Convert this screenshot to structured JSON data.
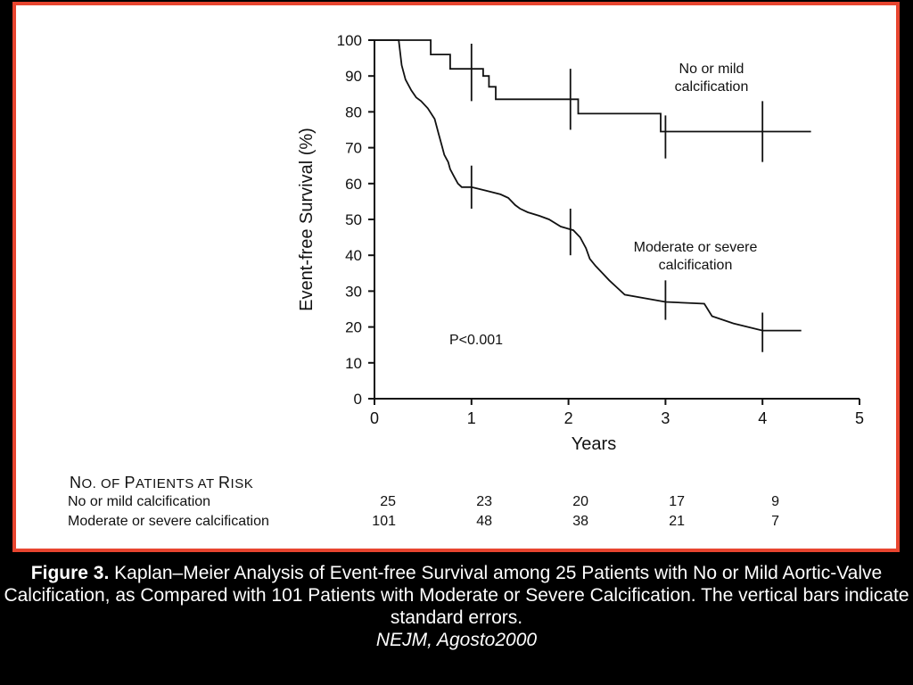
{
  "chart_data": {
    "type": "line",
    "ylabel": "Event-free Survival (%)",
    "xlabel": "Years",
    "xlim": [
      0,
      5
    ],
    "ylim": [
      0,
      100
    ],
    "xticks": [
      "0",
      "1",
      "2",
      "3",
      "4",
      "5"
    ],
    "yticks": [
      "0",
      "10",
      "20",
      "30",
      "40",
      "50",
      "60",
      "70",
      "80",
      "90",
      "100"
    ],
    "annotation": "P<0.001",
    "grid": false,
    "series": [
      {
        "name": "No or mild calcification",
        "label_line1": "No or mild",
        "label_line2": "calcification",
        "x": [
          0,
          0.58,
          0.58,
          0.78,
          0.78,
          1.12,
          1.12,
          1.18,
          1.18,
          1.25,
          1.25,
          2.1,
          2.1,
          2.95,
          2.95,
          4.5
        ],
        "y": [
          100,
          100,
          96,
          96,
          92,
          92,
          90,
          90,
          87,
          87,
          83.5,
          83.5,
          79.5,
          79.5,
          74.5,
          74.5
        ],
        "error_bars": [
          {
            "x": 1.0,
            "y": 92,
            "lo": 83,
            "hi": 99
          },
          {
            "x": 2.02,
            "y": 83.5,
            "lo": 75,
            "hi": 92
          },
          {
            "x": 3.0,
            "y": 74.5,
            "lo": 67,
            "hi": 79
          },
          {
            "x": 4.0,
            "y": 74.5,
            "lo": 66,
            "hi": 83
          }
        ]
      },
      {
        "name": "Moderate or severe calcification",
        "label_line1": "Moderate or severe",
        "label_line2": "calcification",
        "x": [
          0,
          0.25,
          0.28,
          0.32,
          0.38,
          0.43,
          0.48,
          0.55,
          0.62,
          0.66,
          0.7,
          0.72,
          0.74,
          0.76,
          0.78,
          0.82,
          0.86,
          0.9,
          0.95,
          1.0,
          1.15,
          1.3,
          1.38,
          1.45,
          1.5,
          1.58,
          1.7,
          1.8,
          1.92,
          2.05,
          2.12,
          2.18,
          2.22,
          2.28,
          2.35,
          2.42,
          2.5,
          2.58,
          3.0,
          3.4,
          3.48,
          3.7,
          4.0,
          4.4
        ],
        "y": [
          100,
          100,
          93,
          89,
          86,
          84,
          83,
          81,
          78,
          74,
          70,
          68,
          67,
          66,
          64,
          62,
          60,
          59,
          59,
          59,
          58,
          57,
          56,
          54,
          53,
          52,
          51,
          50,
          48,
          47,
          45,
          42,
          39,
          37,
          35,
          33,
          31,
          29,
          27,
          26.5,
          23,
          21,
          19,
          19
        ],
        "error_bars": [
          {
            "x": 1.0,
            "y": 59,
            "lo": 53,
            "hi": 65
          },
          {
            "x": 2.02,
            "y": 47,
            "lo": 40,
            "hi": 53
          },
          {
            "x": 3.0,
            "y": 27,
            "lo": 22,
            "hi": 33
          },
          {
            "x": 4.0,
            "y": 19,
            "lo": 13,
            "hi": 24
          }
        ]
      }
    ]
  },
  "risk_table": {
    "title_first": "N",
    "title_rest": "O. OF ",
    "title_p": "P",
    "title_atients": "ATIENTS AT ",
    "title_r": "R",
    "title_isk": "ISK",
    "rows": [
      {
        "label": "No or mild calcification",
        "values": [
          "25",
          "23",
          "20",
          "17",
          "9"
        ]
      },
      {
        "label": "Moderate or severe calcification",
        "values": [
          "101",
          "48",
          "38",
          "21",
          "7"
        ]
      }
    ]
  },
  "caption": {
    "figure_label": "Figure 3.",
    "text": " Kaplan–Meier Analysis of Event-free Survival among 25 Patients with No or Mild Aortic-Valve Calcification, as Compared with 101 Patients with Moderate or Severe Calcification. The vertical bars indicate standard errors.",
    "source": "NEJM, Agosto2000"
  },
  "colors": {
    "frame": "#e8452f",
    "background": "#000000",
    "ink": "#111111"
  }
}
